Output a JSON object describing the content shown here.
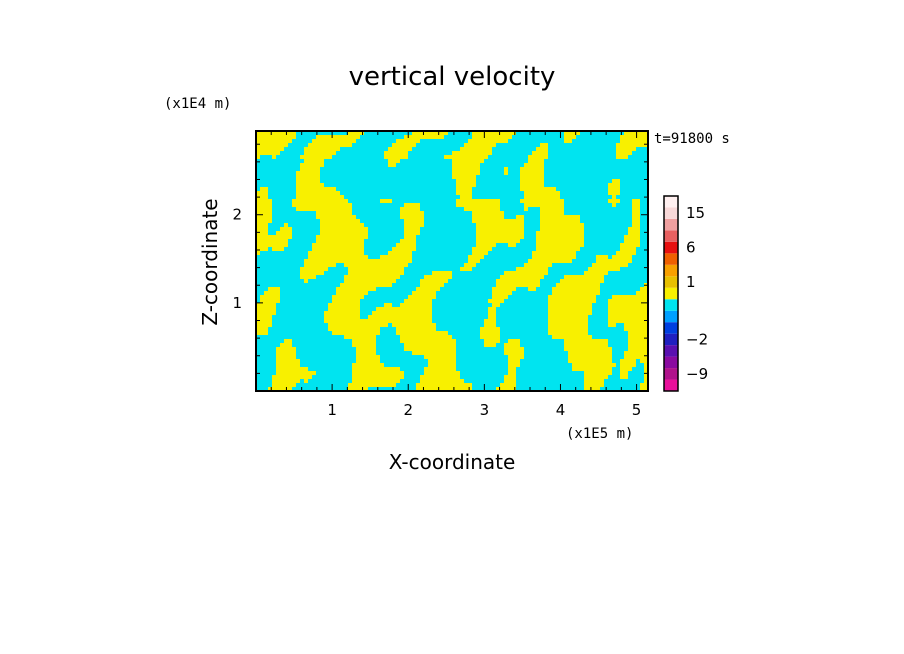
{
  "chart_data": {
    "type": "heatmap",
    "title": "vertical velocity",
    "xlabel": "X-coordinate",
    "ylabel": "Z-coordinate",
    "x_unit": "(x1E5 m)",
    "y_unit": "(x1E4 m)",
    "time_label": "t=91800 s",
    "xlim": [
      0,
      5.15
    ],
    "ylim": [
      0,
      2.95
    ],
    "x_ticks": [
      1,
      2,
      3,
      4,
      5
    ],
    "y_ticks": [
      1,
      2
    ],
    "grid": false,
    "colorbar": {
      "levels": [
        -12,
        -9,
        -6,
        -4,
        -2,
        -1,
        -0.5,
        0,
        0.5,
        1,
        2,
        4,
        6,
        9,
        12,
        15,
        18,
        21
      ],
      "colors": [
        "#e8109a",
        "#b0138c",
        "#8a0aa0",
        "#5a10b0",
        "#2020c0",
        "#0040e0",
        "#00a0ff",
        "#00e4f0",
        "#f8f000",
        "#e8c000",
        "#f8a000",
        "#f06000",
        "#e81010",
        "#e86060",
        "#f0a0a0",
        "#f8d8d8",
        "#fff0f0"
      ],
      "tick_labels": [
        "15",
        "6",
        "1",
        "-2",
        "-9"
      ]
    },
    "field_colors": {
      "negative": "#00e4f0",
      "positive": "#f8f000"
    }
  }
}
